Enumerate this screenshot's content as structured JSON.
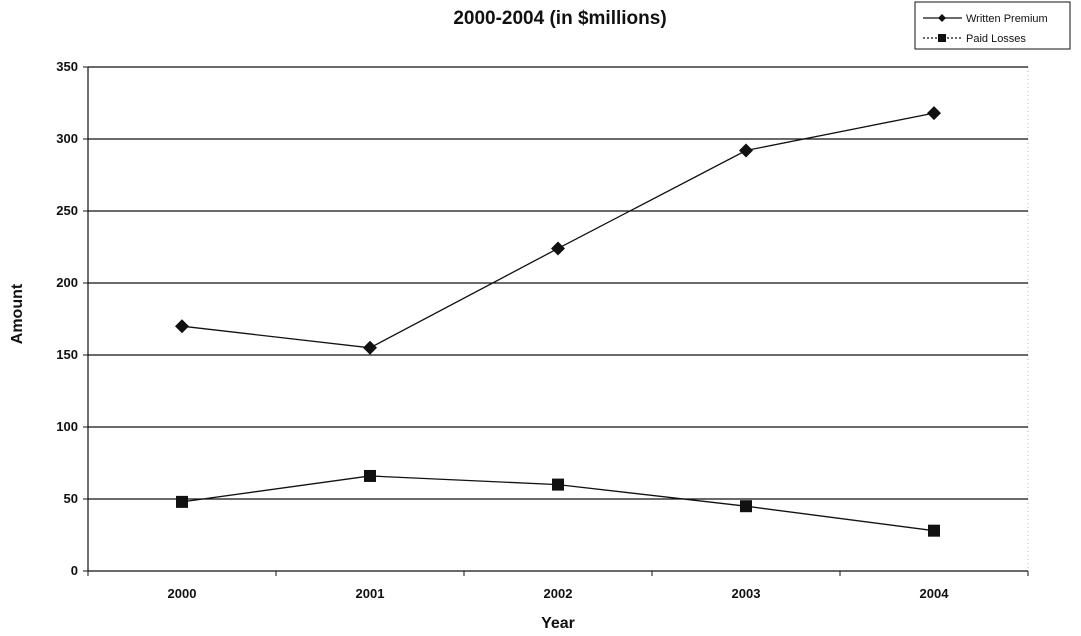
{
  "chart_data": {
    "type": "line",
    "title": "2000-2004 (in $millions)",
    "xlabel": "Year",
    "ylabel": "Amount",
    "categories": [
      "2000",
      "2001",
      "2002",
      "2003",
      "2004"
    ],
    "ylim": [
      0,
      350
    ],
    "yticks": [
      "0",
      "50",
      "100",
      "150",
      "200",
      "250",
      "300",
      "350"
    ],
    "grid": true,
    "legend_position": "top-right",
    "series": [
      {
        "name": "Written Premium",
        "marker": "diamond",
        "values": [
          170,
          155,
          224,
          292,
          318
        ]
      },
      {
        "name": "Paid Losses",
        "marker": "square",
        "values": [
          48,
          66,
          60,
          45,
          28
        ]
      }
    ]
  }
}
